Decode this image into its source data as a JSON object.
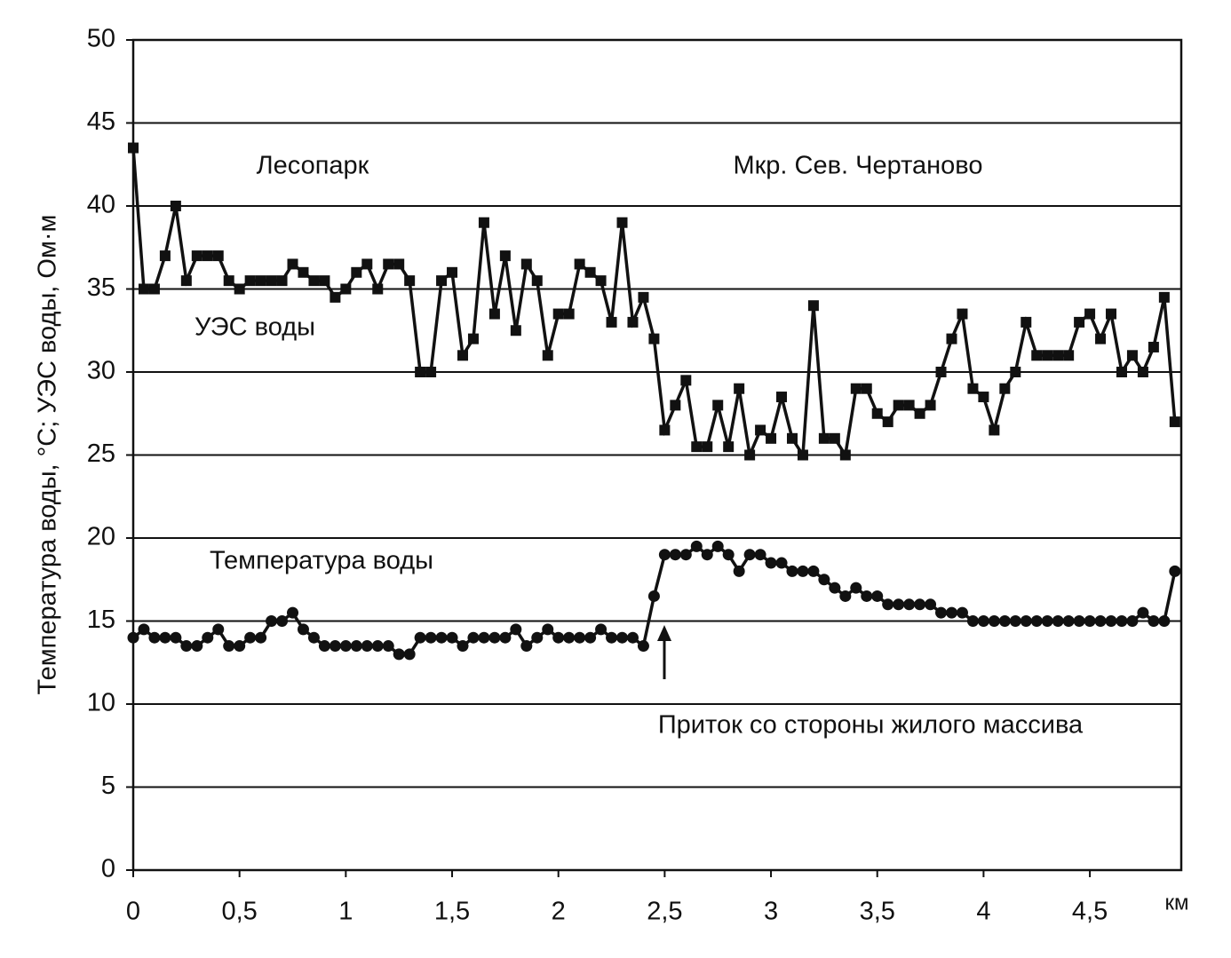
{
  "chart_data": {
    "type": "line",
    "y_label": "Температура воды,  °С; УЭС воды, Ом·м",
    "x_label": "км",
    "annotations": [
      "Лесопарк",
      "Мкр. Сев. Чертаново",
      "Приток со стороны жилого массива"
    ],
    "x": [
      0,
      0.05,
      0.1,
      0.15,
      0.2,
      0.25,
      0.3,
      0.35,
      0.4,
      0.45,
      0.5,
      0.55,
      0.6,
      0.65,
      0.7,
      0.75,
      0.8,
      0.85,
      0.9,
      0.95,
      1,
      1.05,
      1.1,
      1.15,
      1.2,
      1.25,
      1.3,
      1.35,
      1.4,
      1.45,
      1.5,
      1.55,
      1.6,
      1.65,
      1.7,
      1.75,
      1.8,
      1.85,
      1.9,
      1.95,
      2,
      2.05,
      2.1,
      2.15,
      2.2,
      2.25,
      2.3,
      2.35,
      2.4,
      2.45,
      2.5,
      2.55,
      2.6,
      2.65,
      2.7,
      2.75,
      2.8,
      2.85,
      2.9,
      2.95,
      3,
      3.05,
      3.1,
      3.15,
      3.2,
      3.25,
      3.3,
      3.35,
      3.4,
      3.45,
      3.5,
      3.55,
      3.6,
      3.65,
      3.7,
      3.75,
      3.8,
      3.85,
      3.9,
      3.95,
      4,
      4.05,
      4.1,
      4.15,
      4.2,
      4.25,
      4.3,
      4.35,
      4.4,
      4.45,
      4.5,
      4.55,
      4.6,
      4.65,
      4.7,
      4.75,
      4.8,
      4.85,
      4.9
    ],
    "series": [
      {
        "name": "УЭС воды",
        "color": "#111111",
        "marker": "square",
        "values": [
          43.5,
          35,
          35,
          37,
          40,
          35.5,
          37,
          37,
          37,
          35.5,
          35,
          35.5,
          35.5,
          35.5,
          35.5,
          36.5,
          36,
          35.5,
          35.5,
          34.5,
          35,
          36,
          36.5,
          35,
          36.5,
          36.5,
          35.5,
          30,
          30,
          35.5,
          36,
          31,
          32,
          39,
          33.5,
          37,
          32.5,
          36.5,
          35.5,
          31,
          33.5,
          33.5,
          36.5,
          36,
          35.5,
          33,
          39,
          33,
          34.5,
          32,
          26.5,
          28,
          29.5,
          25.5,
          25.5,
          28,
          25.5,
          29,
          25,
          26.5,
          26,
          28.5,
          26,
          25,
          34,
          26,
          26,
          25,
          29,
          29,
          27.5,
          27,
          28,
          28,
          27.5,
          28,
          30,
          32,
          33.5,
          29,
          28.5,
          26.5,
          29,
          30,
          33,
          31,
          31,
          31,
          31,
          33,
          33.5,
          32,
          33.5,
          30,
          31,
          30,
          31.5,
          34.5,
          27
        ]
      },
      {
        "name": "Температура воды",
        "color": "#111111",
        "marker": "circle",
        "values": [
          14,
          14.5,
          14,
          14,
          14,
          13.5,
          13.5,
          14,
          14.5,
          13.5,
          13.5,
          14,
          14,
          15,
          15,
          15.5,
          14.5,
          14,
          13.5,
          13.5,
          13.5,
          13.5,
          13.5,
          13.5,
          13.5,
          13,
          13,
          14,
          14,
          14,
          14,
          13.5,
          14,
          14,
          14,
          14,
          14.5,
          13.5,
          14,
          14.5,
          14,
          14,
          14,
          14,
          14.5,
          14,
          14,
          14,
          13.5,
          16.5,
          19,
          19,
          19,
          19.5,
          19,
          19.5,
          19,
          18,
          19,
          19,
          18.5,
          18.5,
          18,
          18,
          18,
          17.5,
          17,
          16.5,
          17,
          16.5,
          16.5,
          16,
          16,
          16,
          16,
          16,
          15.5,
          15.5,
          15.5,
          15,
          15,
          15,
          15,
          15,
          15,
          15,
          15,
          15,
          15,
          15,
          15,
          15,
          15,
          15,
          15,
          15.5,
          15,
          15,
          18
        ]
      }
    ],
    "xlim": [
      0,
      4.93
    ],
    "ylim": [
      0,
      50
    ],
    "xticks": [
      0,
      {
        "value": 0.5,
        "label": "0,5"
      },
      1,
      {
        "value": 1.5,
        "label": "1,5"
      },
      2,
      {
        "value": 2.5,
        "label": "2,5"
      },
      3,
      {
        "value": 3.5,
        "label": "3,5"
      },
      4,
      {
        "value": 4.5,
        "label": "4,5"
      }
    ],
    "yticks": [
      0,
      5,
      10,
      15,
      20,
      25,
      30,
      35,
      40,
      45,
      50
    ],
    "grid": true
  }
}
